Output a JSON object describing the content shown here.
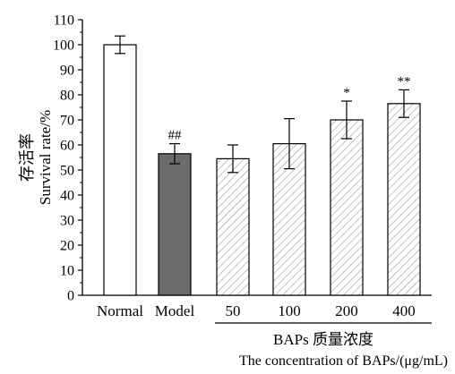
{
  "chart_data": {
    "type": "bar",
    "ylabel_cn": "存活率",
    "ylabel_en": "Survival rate/%",
    "categories": [
      "Normal",
      "Model",
      "50",
      "100",
      "200",
      "400"
    ],
    "values": [
      100,
      56.5,
      54.5,
      60.5,
      70,
      76.5
    ],
    "errors": [
      3.5,
      4,
      5.5,
      10,
      7.5,
      5.5
    ],
    "annotations": [
      "",
      "##",
      "",
      "",
      "*",
      "**"
    ],
    "fills": [
      "white",
      "dark-gray",
      "hatched",
      "hatched",
      "hatched",
      "hatched"
    ],
    "ylim": [
      0,
      110
    ],
    "yticks": [
      0,
      10,
      20,
      30,
      40,
      50,
      60,
      70,
      80,
      90,
      100,
      110
    ],
    "group_label_cn": "BAPs 质量浓度",
    "xlabel_en": "The concentration of BAPs/(μg/mL)",
    "grid": false
  },
  "colors": {
    "axis": "#000000",
    "normal_fill": "#ffffff",
    "model_fill": "#6b6b6b",
    "hatch_line": "#9a9a9a"
  }
}
